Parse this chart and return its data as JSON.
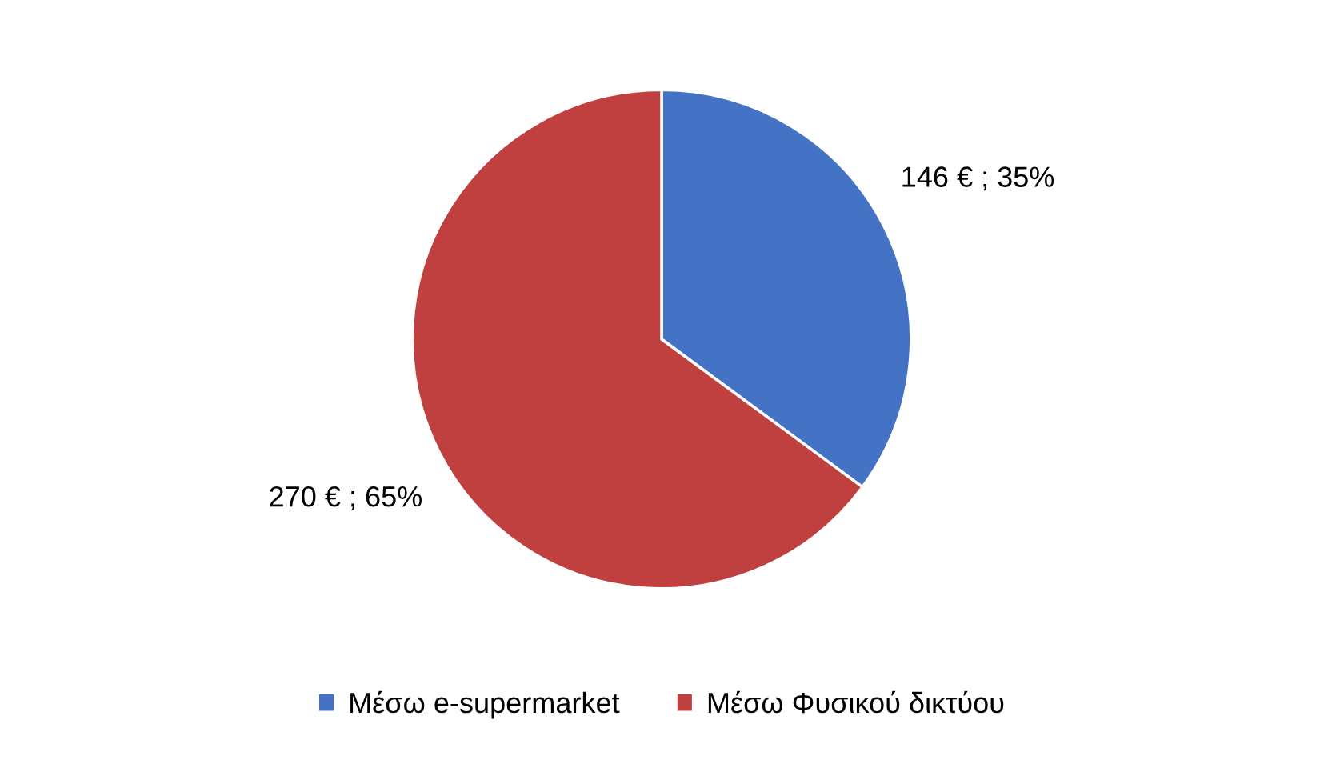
{
  "chart_data": {
    "type": "pie",
    "categories": [
      "Μέσω e-supermarket",
      "Μέσω Φυσικού δικτύου"
    ],
    "values": [
      146,
      270
    ],
    "value_labels": [
      "146 € ; 35%",
      "270 € ; 65%"
    ],
    "colors": [
      "#4472c4",
      "#c0403f"
    ],
    "legend": "bottom"
  }
}
